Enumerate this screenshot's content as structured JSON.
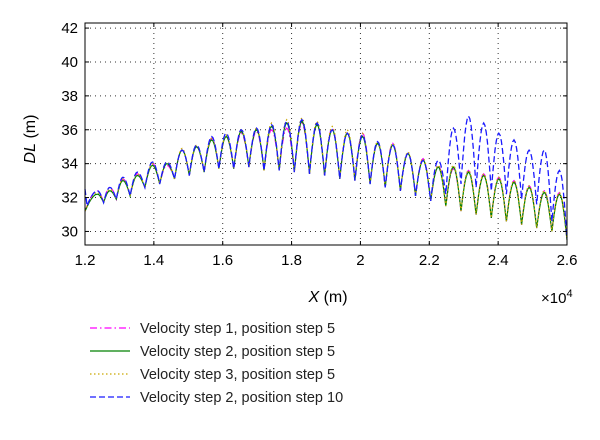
{
  "chart_data": {
    "type": "line",
    "xlabel": {
      "symbol": "X",
      "unit": "(m)"
    },
    "ylabel": {
      "symbol": "DL",
      "unit": "(m)"
    },
    "x_multiplier_base": "×10",
    "x_multiplier_exp": "4",
    "xlim": [
      1.2,
      2.6
    ],
    "ylim": [
      29.2,
      42.3
    ],
    "x_ticks": [
      1.2,
      1.4,
      1.6,
      1.8,
      2,
      2.2,
      2.4,
      2.6
    ],
    "x_tick_labels": [
      "1.2",
      "1.4",
      "1.6",
      "1.8",
      "2",
      "2.2",
      "2.4",
      "2.6"
    ],
    "y_ticks": [
      30,
      32,
      34,
      36,
      38,
      40,
      42
    ],
    "y_tick_labels": [
      "30",
      "32",
      "34",
      "36",
      "38",
      "40",
      "42"
    ],
    "grid": true,
    "legend_position": "below",
    "series": [
      {
        "name": "Velocity step 1, position step 5",
        "color": "#ff00ff",
        "dash": "dashdot",
        "x_range": [
          1.2,
          2.6
        ],
        "peaks": [
          [
            1.236,
            32.4
          ],
          [
            1.272,
            32.6
          ],
          [
            1.31,
            33.1
          ],
          [
            1.352,
            33.4
          ],
          [
            1.396,
            34.0
          ],
          [
            1.438,
            33.9
          ],
          [
            1.482,
            34.8
          ],
          [
            1.524,
            35.0
          ],
          [
            1.568,
            35.5
          ],
          [
            1.61,
            35.6
          ],
          [
            1.654,
            35.8
          ],
          [
            1.698,
            35.9
          ],
          [
            1.742,
            36.0
          ],
          [
            1.786,
            36.1
          ],
          [
            1.83,
            36.4
          ],
          [
            1.874,
            36.3
          ],
          [
            1.918,
            36.1
          ],
          [
            1.962,
            35.8
          ],
          [
            2.006,
            35.8
          ],
          [
            2.05,
            35.2
          ],
          [
            2.094,
            35.2
          ],
          [
            2.138,
            34.6
          ],
          [
            2.182,
            34.3
          ],
          [
            2.226,
            33.9
          ],
          [
            2.27,
            33.7
          ],
          [
            2.314,
            33.6
          ],
          [
            2.358,
            33.4
          ],
          [
            2.402,
            33.2
          ],
          [
            2.446,
            33.0
          ],
          [
            2.49,
            32.7
          ],
          [
            2.534,
            32.4
          ],
          [
            2.578,
            32.3
          ]
        ]
      },
      {
        "name": "Velocity step 2, position step 5",
        "color": "#008000",
        "dash": "solid",
        "x_range": [
          1.2,
          2.6
        ],
        "peaks": [
          [
            1.236,
            32.2
          ],
          [
            1.272,
            32.4
          ],
          [
            1.31,
            33.0
          ],
          [
            1.352,
            33.3
          ],
          [
            1.396,
            33.9
          ],
          [
            1.438,
            34.0
          ],
          [
            1.482,
            34.8
          ],
          [
            1.524,
            35.0
          ],
          [
            1.568,
            35.4
          ],
          [
            1.61,
            35.6
          ],
          [
            1.654,
            35.9
          ],
          [
            1.698,
            36.0
          ],
          [
            1.742,
            36.2
          ],
          [
            1.786,
            36.4
          ],
          [
            1.83,
            36.5
          ],
          [
            1.874,
            36.3
          ],
          [
            1.918,
            36.0
          ],
          [
            1.962,
            35.8
          ],
          [
            2.006,
            35.6
          ],
          [
            2.05,
            35.2
          ],
          [
            2.094,
            35.1
          ],
          [
            2.138,
            34.6
          ],
          [
            2.182,
            34.2
          ],
          [
            2.226,
            33.8
          ],
          [
            2.27,
            33.8
          ],
          [
            2.314,
            33.5
          ],
          [
            2.358,
            33.3
          ],
          [
            2.402,
            33.1
          ],
          [
            2.446,
            32.9
          ],
          [
            2.49,
            32.6
          ],
          [
            2.534,
            32.3
          ],
          [
            2.578,
            32.2
          ]
        ]
      },
      {
        "name": "Velocity step 3, position step 5",
        "color": "#c9a800",
        "dash": "dotted",
        "x_range": [
          1.2,
          2.6
        ],
        "peaks": [
          [
            1.236,
            32.3
          ],
          [
            1.272,
            32.5
          ],
          [
            1.31,
            33.1
          ],
          [
            1.352,
            33.4
          ],
          [
            1.396,
            34.0
          ],
          [
            1.438,
            34.1
          ],
          [
            1.482,
            34.9
          ],
          [
            1.524,
            35.1
          ],
          [
            1.568,
            35.5
          ],
          [
            1.61,
            35.7
          ],
          [
            1.654,
            36.0
          ],
          [
            1.698,
            36.1
          ],
          [
            1.742,
            36.4
          ],
          [
            1.786,
            36.6
          ],
          [
            1.83,
            36.7
          ],
          [
            1.874,
            36.5
          ],
          [
            1.918,
            36.2
          ],
          [
            1.962,
            36.0
          ],
          [
            2.006,
            35.8
          ],
          [
            2.05,
            35.3
          ],
          [
            2.094,
            35.2
          ],
          [
            2.138,
            34.7
          ],
          [
            2.182,
            34.3
          ],
          [
            2.226,
            33.9
          ],
          [
            2.27,
            33.9
          ],
          [
            2.314,
            33.6
          ],
          [
            2.358,
            33.4
          ],
          [
            2.402,
            33.2
          ],
          [
            2.446,
            33.0
          ],
          [
            2.49,
            32.7
          ],
          [
            2.534,
            32.4
          ],
          [
            2.578,
            32.3
          ]
        ]
      },
      {
        "name": "Velocity step 2, position step 10",
        "color": "#1a1aff",
        "dash": "dashed",
        "x_range": [
          1.2,
          2.6
        ],
        "peaks": [
          [
            1.236,
            32.4
          ],
          [
            1.272,
            32.6
          ],
          [
            1.31,
            33.2
          ],
          [
            1.352,
            33.5
          ],
          [
            1.396,
            34.1
          ],
          [
            1.438,
            34.1
          ],
          [
            1.482,
            34.8
          ],
          [
            1.524,
            35.1
          ],
          [
            1.568,
            35.6
          ],
          [
            1.61,
            35.8
          ],
          [
            1.654,
            36.0
          ],
          [
            1.698,
            36.1
          ],
          [
            1.742,
            36.3
          ],
          [
            1.786,
            36.5
          ],
          [
            1.83,
            36.6
          ],
          [
            1.874,
            36.4
          ],
          [
            1.918,
            36.0
          ],
          [
            1.962,
            35.8
          ],
          [
            2.006,
            35.7
          ],
          [
            2.05,
            35.3
          ],
          [
            2.094,
            35.1
          ],
          [
            2.138,
            34.6
          ],
          [
            2.182,
            34.2
          ],
          [
            2.226,
            34.2
          ],
          [
            2.27,
            36.1
          ],
          [
            2.314,
            36.8
          ],
          [
            2.358,
            36.4
          ],
          [
            2.402,
            35.8
          ],
          [
            2.446,
            35.4
          ],
          [
            2.49,
            34.8
          ],
          [
            2.534,
            34.8
          ],
          [
            2.578,
            33.6
          ]
        ]
      }
    ],
    "troughs": {
      "early": [
        [
          1.254,
          31.7
        ],
        [
          1.291,
          31.9
        ],
        [
          1.331,
          32.1
        ],
        [
          1.374,
          32.6
        ],
        [
          1.417,
          32.8
        ],
        [
          1.46,
          33.1
        ],
        [
          1.503,
          33.3
        ],
        [
          1.546,
          33.5
        ],
        [
          1.589,
          33.7
        ],
        [
          1.632,
          33.7
        ],
        [
          1.676,
          33.8
        ],
        [
          1.72,
          33.6
        ],
        [
          1.764,
          33.6
        ],
        [
          1.808,
          33.5
        ],
        [
          1.852,
          33.4
        ],
        [
          1.896,
          33.3
        ],
        [
          1.94,
          33.1
        ],
        [
          1.984,
          33.0
        ],
        [
          2.028,
          32.8
        ],
        [
          2.072,
          32.6
        ],
        [
          2.116,
          32.4
        ],
        [
          2.16,
          32.1
        ],
        [
          2.204,
          31.8
        ]
      ],
      "late5": [
        [
          2.248,
          31.5
        ],
        [
          2.292,
          31.2
        ],
        [
          2.336,
          31.0
        ],
        [
          2.38,
          30.8
        ],
        [
          2.424,
          30.6
        ],
        [
          2.468,
          30.4
        ],
        [
          2.512,
          30.2
        ],
        [
          2.556,
          30.0
        ],
        [
          2.6,
          29.5
        ]
      ],
      "late10": [
        [
          2.248,
          32.2
        ],
        [
          2.292,
          32.8
        ],
        [
          2.336,
          32.6
        ],
        [
          2.38,
          32.4
        ],
        [
          2.424,
          32.2
        ],
        [
          2.468,
          31.9
        ],
        [
          2.512,
          31.6
        ],
        [
          2.556,
          30.6
        ],
        [
          2.6,
          29.6
        ]
      ]
    }
  }
}
